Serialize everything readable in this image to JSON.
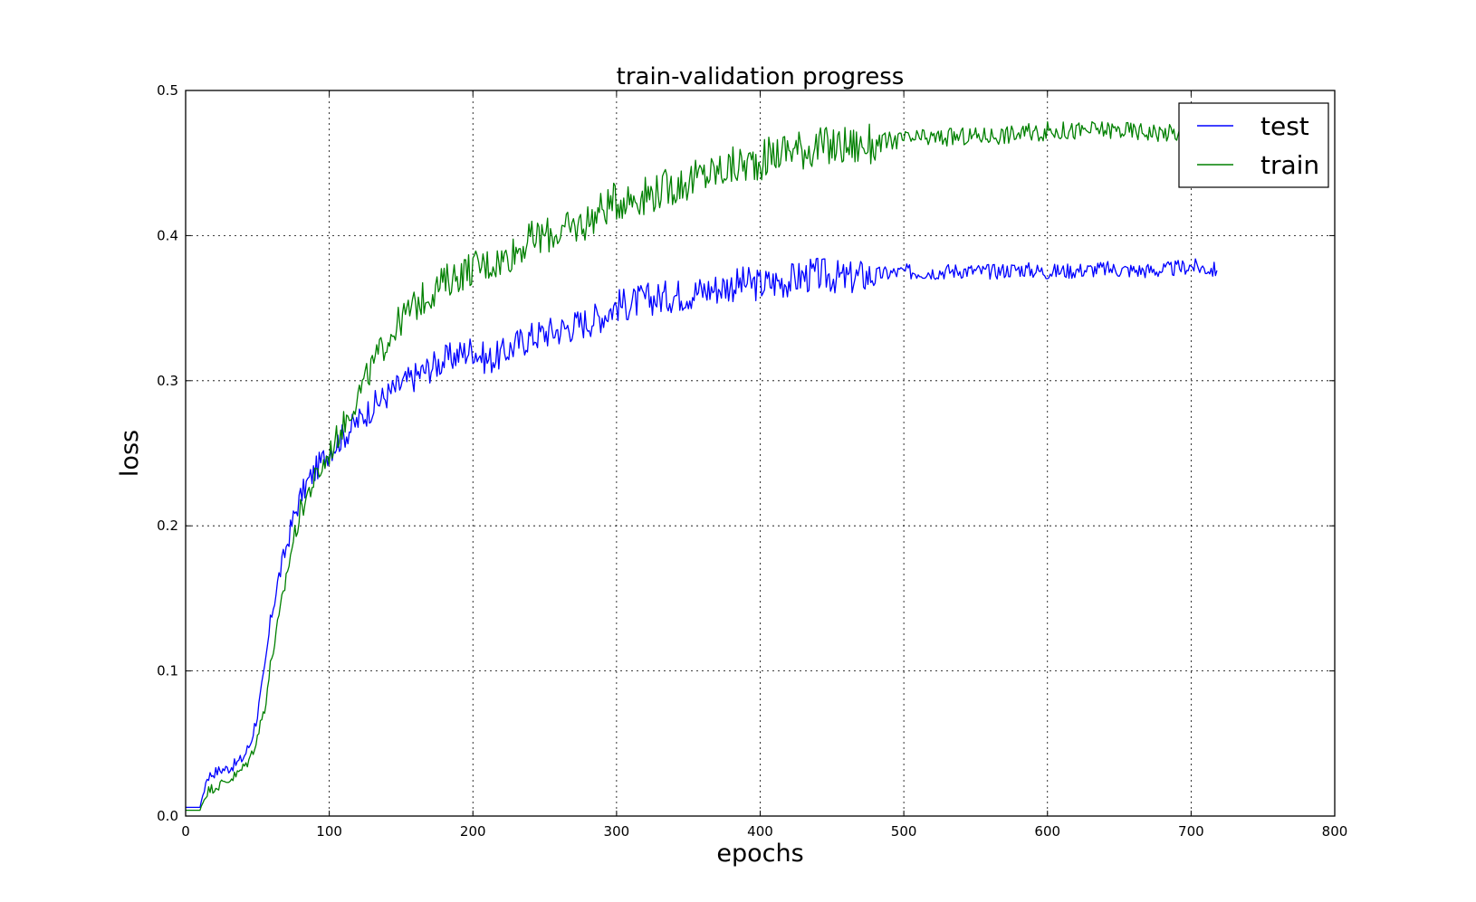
{
  "chart_data": {
    "type": "line",
    "title": "train-validation progress",
    "xlabel": "epochs",
    "ylabel": "loss",
    "xlim": [
      0,
      800
    ],
    "ylim": [
      0,
      0.5
    ],
    "x_ticks": [
      "0",
      "100",
      "200",
      "300",
      "400",
      "500",
      "600",
      "700",
      "800"
    ],
    "y_ticks": [
      "0.0",
      "0.1",
      "0.2",
      "0.3",
      "0.4",
      "0.5"
    ],
    "grid": true,
    "legend_position": "top-right",
    "series": [
      {
        "name": "test",
        "color": "#0000ff",
        "x": [
          0,
          10,
          12,
          15,
          20,
          25,
          30,
          35,
          40,
          45,
          50,
          55,
          58,
          60,
          65,
          70,
          75,
          80,
          85,
          90,
          95,
          100,
          110,
          120,
          130,
          140,
          150,
          160,
          170,
          180,
          190,
          200,
          210,
          220,
          230,
          240,
          250,
          260,
          270,
          280,
          290,
          300,
          310,
          320,
          330,
          340,
          350,
          360,
          370,
          380,
          390,
          400,
          410,
          420,
          430,
          440,
          450,
          460,
          470,
          480,
          490,
          500,
          520,
          540,
          560,
          580,
          600,
          620,
          640,
          660,
          680,
          700,
          718
        ],
        "y": [
          0.006,
          0.006,
          0.015,
          0.027,
          0.03,
          0.032,
          0.033,
          0.036,
          0.04,
          0.05,
          0.07,
          0.1,
          0.125,
          0.14,
          0.165,
          0.185,
          0.205,
          0.22,
          0.23,
          0.238,
          0.245,
          0.252,
          0.262,
          0.272,
          0.282,
          0.29,
          0.297,
          0.303,
          0.309,
          0.314,
          0.318,
          0.322,
          0.314,
          0.318,
          0.325,
          0.33,
          0.333,
          0.335,
          0.338,
          0.341,
          0.345,
          0.352,
          0.353,
          0.356,
          0.357,
          0.359,
          0.36,
          0.362,
          0.364,
          0.366,
          0.367,
          0.366,
          0.368,
          0.369,
          0.372,
          0.373,
          0.372,
          0.37,
          0.372,
          0.373,
          0.374,
          0.375,
          0.375,
          0.376,
          0.375,
          0.377,
          0.375,
          0.376,
          0.377,
          0.376,
          0.376,
          0.379,
          0.376
        ]
      },
      {
        "name": "train",
        "color": "#008000",
        "x": [
          0,
          10,
          12,
          15,
          20,
          25,
          30,
          35,
          40,
          45,
          50,
          55,
          58,
          60,
          65,
          70,
          75,
          80,
          85,
          90,
          95,
          100,
          110,
          120,
          130,
          140,
          150,
          160,
          170,
          180,
          190,
          200,
          210,
          220,
          230,
          240,
          250,
          260,
          270,
          280,
          290,
          300,
          310,
          320,
          330,
          340,
          350,
          360,
          370,
          380,
          390,
          400,
          410,
          420,
          430,
          440,
          450,
          460,
          470,
          480,
          490,
          500,
          520,
          540,
          560,
          580,
          600,
          620,
          640,
          660,
          680,
          700,
          705
        ],
        "y": [
          0.004,
          0.004,
          0.01,
          0.017,
          0.02,
          0.022,
          0.025,
          0.028,
          0.033,
          0.04,
          0.055,
          0.075,
          0.095,
          0.11,
          0.135,
          0.165,
          0.19,
          0.21,
          0.222,
          0.232,
          0.24,
          0.25,
          0.27,
          0.29,
          0.31,
          0.328,
          0.342,
          0.352,
          0.36,
          0.368,
          0.373,
          0.378,
          0.38,
          0.383,
          0.39,
          0.397,
          0.4,
          0.402,
          0.405,
          0.41,
          0.418,
          0.424,
          0.426,
          0.428,
          0.431,
          0.434,
          0.437,
          0.441,
          0.444,
          0.447,
          0.449,
          0.452,
          0.456,
          0.46,
          0.46,
          0.461,
          0.461,
          0.462,
          0.462,
          0.463,
          0.465,
          0.466,
          0.467,
          0.468,
          0.469,
          0.47,
          0.472,
          0.472,
          0.473,
          0.472,
          0.471,
          0.47,
          0.47
        ]
      }
    ]
  }
}
